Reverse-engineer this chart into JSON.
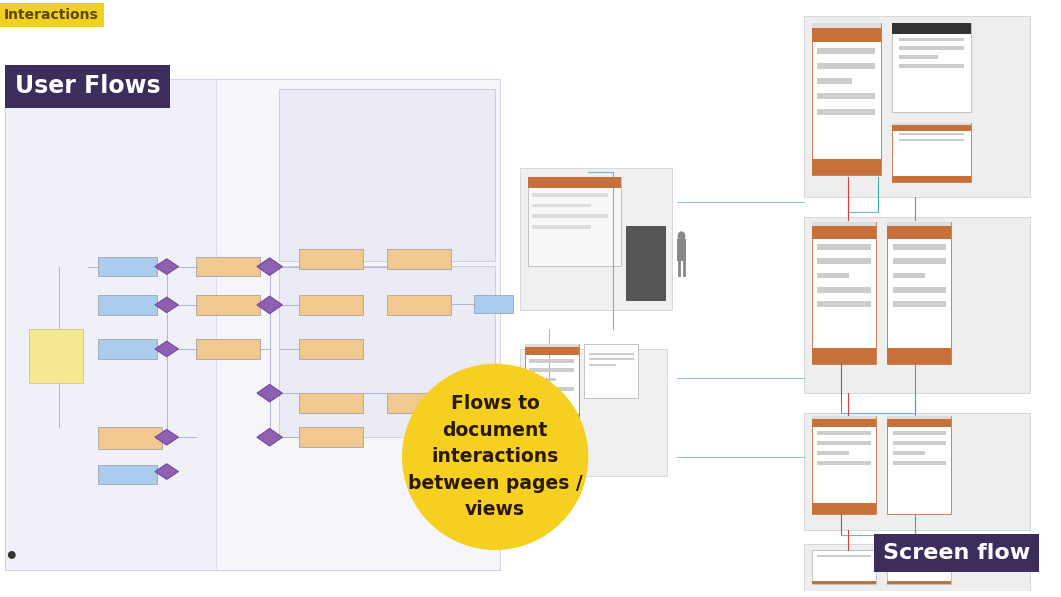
{
  "bg_color": "#ffffff",
  "interactions_bg": "#f0d020",
  "interactions_text": "Interactions",
  "interactions_text_color": "#5a4800",
  "user_flows_bg": "#3d2d5c",
  "user_flows_text": "User Flows",
  "screen_flow_bg": "#3d2d5c",
  "screen_flow_text": "Screen flow",
  "yellow_circle_color": "#f5d020",
  "yellow_circle_text": "Flows to\ndocument\ninteractions\nbetween pages /\nviews",
  "yellow_circle_text_color": "#2a1800",
  "label_color": "#ffffff",
  "orange_bar": "#c8703a",
  "blue_line": "#7ab0d0",
  "red_line": "#cc4444",
  "teal_line": "#44aaaa",
  "purple_diamond": "#9060b0",
  "orange_box": "#f0c890",
  "blue_box": "#aaccee",
  "purple_box": "#c8b0e0",
  "yellow_note": "#f5e890",
  "flow_bg": "#f2f2f8",
  "flow_border": "#ccccdd",
  "group_bg": "#eeeeee",
  "group_border": "#cccccc",
  "wf_bg": "#ffffff",
  "wf_border_orange": "#c8703a",
  "wf_border_gray": "#bbbbbb",
  "wf_line_gray": "#cccccc",
  "wf_line_dark": "#aaaaaa"
}
